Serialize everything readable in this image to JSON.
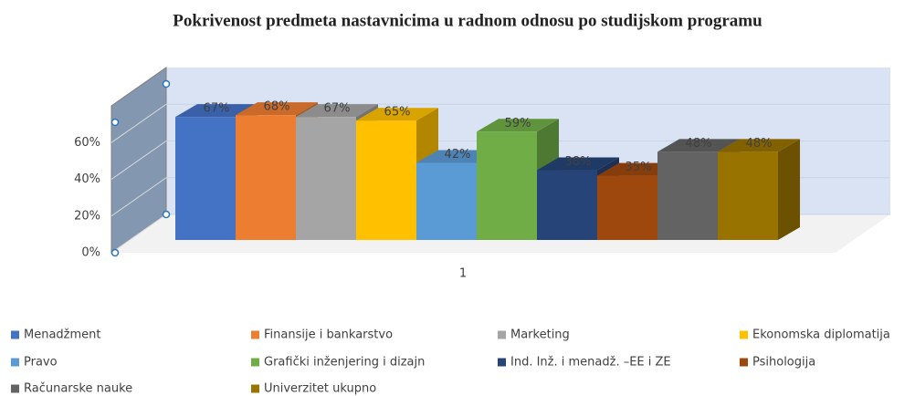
{
  "chart_data": {
    "type": "bar3d",
    "title": "Pokrivenost predmeta nastavnicima u radnom odnosu po studijskom programu",
    "categories": [
      "1"
    ],
    "ylim": [
      0,
      80
    ],
    "yticks": [
      {
        "value": 0,
        "label": "0%"
      },
      {
        "value": 20,
        "label": "20%"
      },
      {
        "value": 40,
        "label": "40%"
      },
      {
        "value": 60,
        "label": "60%"
      }
    ],
    "grid": true,
    "legend": "bottom",
    "series": [
      {
        "name": "Menadžment",
        "color": "#4472c4",
        "values": [
          67
        ],
        "value_labels": [
          "67%"
        ]
      },
      {
        "name": "Finansije i bankarstvo",
        "color": "#ed7d31",
        "values": [
          68
        ],
        "value_labels": [
          "68%"
        ]
      },
      {
        "name": "Marketing",
        "color": "#a5a5a5",
        "values": [
          67
        ],
        "value_labels": [
          "67%"
        ]
      },
      {
        "name": "Ekonomska diplomatija",
        "color": "#ffc000",
        "values": [
          65
        ],
        "value_labels": [
          "65%"
        ]
      },
      {
        "name": "Pravo",
        "color": "#5b9bd5",
        "values": [
          42
        ],
        "value_labels": [
          "42%"
        ]
      },
      {
        "name": "Grafički inženjering i dizajn",
        "color": "#70ad47",
        "values": [
          59
        ],
        "value_labels": [
          "59%"
        ]
      },
      {
        "name": "Ind. Inž. i menadž. –EE i ZE",
        "color": "#264478",
        "values": [
          38
        ],
        "value_labels": [
          "38%"
        ]
      },
      {
        "name": "Psihologija",
        "color": "#9e480e",
        "values": [
          35
        ],
        "value_labels": [
          "35%"
        ]
      },
      {
        "name": "Računarske nauke",
        "color": "#636363",
        "values": [
          48
        ],
        "value_labels": [
          "48%"
        ]
      },
      {
        "name": "Univerzitet ukupno",
        "color": "#997300",
        "values": [
          48
        ],
        "value_labels": [
          "48%"
        ]
      }
    ]
  }
}
